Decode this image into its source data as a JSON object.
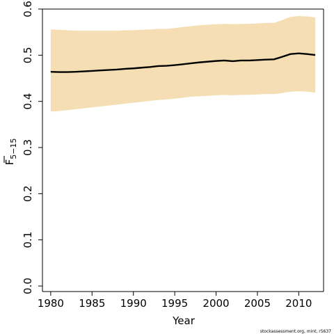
{
  "chart_data": {
    "type": "line",
    "title": "",
    "xlabel": "Year",
    "ylabel_main": "F",
    "ylabel_sub": "5−15",
    "xlim": [
      1979,
      2013
    ],
    "ylim": [
      -0.012,
      0.6
    ],
    "xticks": [
      "1980",
      "1985",
      "1990",
      "1995",
      "2000",
      "2005",
      "2010"
    ],
    "yticks": [
      "0.0",
      "0.1",
      "0.2",
      "0.3",
      "0.4",
      "0.5",
      "0.6"
    ],
    "x": [
      1980,
      1981,
      1982,
      1983,
      1984,
      1985,
      1986,
      1987,
      1988,
      1989,
      1990,
      1991,
      1992,
      1993,
      1994,
      1995,
      1996,
      1997,
      1998,
      1999,
      2000,
      2001,
      2002,
      2003,
      2004,
      2005,
      2006,
      2007,
      2008,
      2009,
      2010,
      2011,
      2012
    ],
    "series": [
      {
        "values": [
          0.464,
          0.4635,
          0.4635,
          0.464,
          0.465,
          0.466,
          0.467,
          0.468,
          0.469,
          0.4705,
          0.4715,
          0.473,
          0.4745,
          0.4765,
          0.477,
          0.4785,
          0.4805,
          0.4825,
          0.4845,
          0.486,
          0.4875,
          0.4885,
          0.487,
          0.4885,
          0.4885,
          0.4895,
          0.4905,
          0.491,
          0.4965,
          0.5025,
          0.504,
          0.5025,
          0.5005
        ],
        "lower": [
          0.378,
          0.379,
          0.381,
          0.383,
          0.385,
          0.387,
          0.389,
          0.391,
          0.393,
          0.395,
          0.397,
          0.399,
          0.401,
          0.403,
          0.404,
          0.406,
          0.408,
          0.41,
          0.411,
          0.412,
          0.413,
          0.414,
          0.413,
          0.414,
          0.414,
          0.415,
          0.416,
          0.416,
          0.418,
          0.421,
          0.422,
          0.421,
          0.419
        ],
        "upper": [
          0.556,
          0.555,
          0.554,
          0.553,
          0.553,
          0.553,
          0.553,
          0.553,
          0.553,
          0.554,
          0.554,
          0.555,
          0.556,
          0.557,
          0.557,
          0.559,
          0.561,
          0.563,
          0.565,
          0.566,
          0.567,
          0.568,
          0.567,
          0.568,
          0.568,
          0.569,
          0.57,
          0.57,
          0.576,
          0.583,
          0.585,
          0.584,
          0.582
        ]
      }
    ],
    "grid": false,
    "band_color": "#f5deb3",
    "line_color": "#000000"
  },
  "credit": "stockassessment.org, mint, r5637"
}
